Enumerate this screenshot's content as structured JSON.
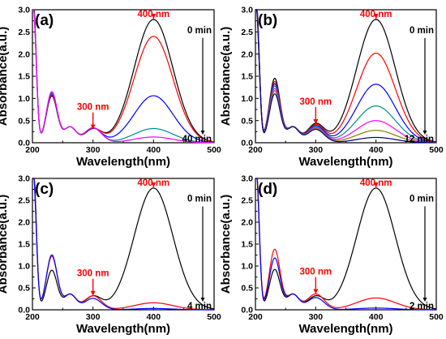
{
  "chart_data": [
    {
      "type": "line",
      "panel_label": "(a)",
      "xlabel": "Wavelength(nm)",
      "ylabel": "Absorbance(a.u.)",
      "xlim": [
        200,
        500
      ],
      "ylim": [
        0,
        3.0
      ],
      "xticks": [
        "200",
        "300",
        "400",
        "500"
      ],
      "yticks": [
        "0.0",
        "0.5",
        "1.0",
        "1.5",
        "2.0",
        "2.5",
        "3.0"
      ],
      "annotations": [
        {
          "text": "400 nm",
          "x": 400,
          "y": 2.78,
          "color": "#ff0000"
        },
        {
          "text": "300 nm",
          "x": 300,
          "y": 0.3,
          "color": "#ff0000"
        },
        {
          "text": "0 min",
          "color": "#000000"
        },
        {
          "text": "40 min",
          "color": "#000000"
        }
      ],
      "series": [
        {
          "color": "#000000",
          "p400": 2.78,
          "p300": 0.3,
          "p230": 1.05,
          "p203": 2.3
        },
        {
          "color": "#ff0000",
          "p400": 2.4,
          "p300": 0.31,
          "p230": 1.07,
          "p203": 2.22
        },
        {
          "color": "#0000ff",
          "p400": 1.06,
          "p300": 0.32,
          "p230": 1.1,
          "p203": 2.18
        },
        {
          "color": "#008b8b",
          "p400": 0.32,
          "p300": 0.33,
          "p230": 1.12,
          "p203": 2.15
        },
        {
          "color": "#ff00ff",
          "p400": 0.13,
          "p300": 0.34,
          "p230": 1.15,
          "p203": 2.12
        }
      ]
    },
    {
      "type": "line",
      "panel_label": "(b)",
      "xlabel": "Wavelength(nm)",
      "ylabel": "Absorbance(a.u.)",
      "xlim": [
        200,
        500
      ],
      "ylim": [
        0,
        3.0
      ],
      "xticks": [
        "200",
        "300",
        "400",
        "500"
      ],
      "yticks": [
        "0.0",
        "0.5",
        "1.0",
        "1.5",
        "2.0",
        "2.5",
        "3.0"
      ],
      "annotations": [
        {
          "text": "400 nm",
          "x": 400,
          "y": 2.78,
          "color": "#ff0000"
        },
        {
          "text": "300 nm",
          "x": 300,
          "y": 0.42,
          "color": "#ff0000"
        },
        {
          "text": "0 min",
          "color": "#000000"
        },
        {
          "text": "12 min",
          "color": "#000000"
        }
      ],
      "series": [
        {
          "color": "#000000",
          "p400": 2.78,
          "p300": 0.42,
          "p230": 1.45,
          "p203": 2.35
        },
        {
          "color": "#ff0000",
          "p400": 2.02,
          "p300": 0.4,
          "p230": 1.38,
          "p203": 2.3
        },
        {
          "color": "#0000ff",
          "p400": 1.32,
          "p300": 0.38,
          "p230": 1.33,
          "p203": 2.26
        },
        {
          "color": "#008b8b",
          "p400": 0.83,
          "p300": 0.36,
          "p230": 1.28,
          "p203": 2.22
        },
        {
          "color": "#ff00ff",
          "p400": 0.5,
          "p300": 0.34,
          "p230": 1.22,
          "p203": 2.18
        },
        {
          "color": "#808000",
          "p400": 0.28,
          "p300": 0.32,
          "p230": 1.17,
          "p203": 2.14
        },
        {
          "color": "#000080",
          "p400": 0.12,
          "p300": 0.3,
          "p230": 1.1,
          "p203": 2.1
        }
      ]
    },
    {
      "type": "line",
      "panel_label": "(c)",
      "xlabel": "Wavelength(nm)",
      "ylabel": "Absorbance(a.u.)",
      "xlim": [
        200,
        500
      ],
      "ylim": [
        0,
        3.0
      ],
      "xticks": [
        "200",
        "300",
        "400",
        "500"
      ],
      "yticks": [
        "0.0",
        "0.5",
        "1.0",
        "1.5",
        "2.0",
        "2.5",
        "3.0"
      ],
      "annotations": [
        {
          "text": "400 nm",
          "x": 400,
          "y": 2.78,
          "color": "#ff0000"
        },
        {
          "text": "300 nm",
          "x": 300,
          "y": 0.32,
          "color": "#ff0000"
        },
        {
          "text": "0 min",
          "color": "#000000"
        },
        {
          "text": "4 min",
          "color": "#000000"
        }
      ],
      "series": [
        {
          "color": "#000000",
          "p400": 2.78,
          "p300": 0.3,
          "p230": 0.9,
          "p203": 2.4
        },
        {
          "color": "#ff0000",
          "p400": 0.16,
          "p300": 0.32,
          "p230": 1.22,
          "p203": 2.25
        },
        {
          "color": "#0000ff",
          "p400": 0.03,
          "p300": 0.26,
          "p230": 1.25,
          "p203": 2.2
        }
      ]
    },
    {
      "type": "line",
      "panel_label": "(d)",
      "xlabel": "Wavelength(nm)",
      "ylabel": "Absorbance(a.u.)",
      "xlim": [
        200,
        500
      ],
      "ylim": [
        0,
        3.0
      ],
      "xticks": [
        "200",
        "300",
        "400",
        "500"
      ],
      "yticks": [
        "0.0",
        "0.5",
        "1.0",
        "1.5",
        "2.0",
        "2.5",
        "3.0"
      ],
      "annotations": [
        {
          "text": "400 nm",
          "x": 400,
          "y": 2.78,
          "color": "#ff0000"
        },
        {
          "text": "300 nm",
          "x": 300,
          "y": 0.36,
          "color": "#ff0000"
        },
        {
          "text": "0 min",
          "color": "#000000"
        },
        {
          "text": "2 min",
          "color": "#000000"
        }
      ],
      "series": [
        {
          "color": "#000000",
          "p400": 2.78,
          "p300": 0.3,
          "p230": 0.92,
          "p203": 2.35
        },
        {
          "color": "#ff0000",
          "p400": 0.27,
          "p300": 0.36,
          "p230": 1.38,
          "p203": 2.28
        },
        {
          "color": "#0000ff",
          "p400": 0.04,
          "p300": 0.28,
          "p230": 1.18,
          "p203": 2.22
        }
      ]
    }
  ]
}
